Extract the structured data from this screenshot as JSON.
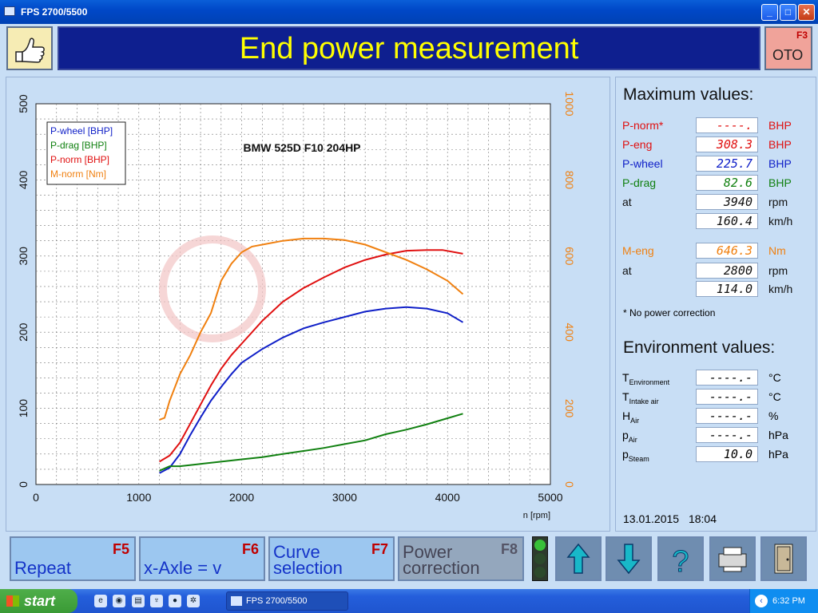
{
  "window": {
    "title": "FPS 2700/5500"
  },
  "header": {
    "title": "End power measurement",
    "f3_key": "F3",
    "f3_icon": "ОТО"
  },
  "chart_data": {
    "type": "line",
    "title": "BMW 525D F10 204HP",
    "xlabel": "n [rpm]",
    "xlim": [
      0,
      5000
    ],
    "ylim_left": [
      0,
      500
    ],
    "ylim_right": [
      0,
      1000
    ],
    "x_ticks": [
      "0",
      "1000",
      "2000",
      "3000",
      "4000",
      "5000"
    ],
    "y_left_ticks": [
      "0",
      "100",
      "200",
      "300",
      "400",
      "500"
    ],
    "y_right_ticks": [
      "0",
      "200",
      "400",
      "600",
      "800",
      "1000"
    ],
    "grid": true,
    "legend_position": "top-left",
    "series": [
      {
        "name": "P-wheel [BHP]",
        "axis": "left",
        "color": "#1020c8",
        "x": [
          1200,
          1300,
          1400,
          1500,
          1600,
          1700,
          1800,
          1900,
          2000,
          2200,
          2400,
          2600,
          2800,
          3000,
          3200,
          3400,
          3600,
          3800,
          4000,
          4150
        ],
        "y": [
          15,
          22,
          40,
          65,
          88,
          110,
          128,
          145,
          160,
          178,
          193,
          205,
          213,
          220,
          227,
          231,
          233,
          231,
          225,
          213
        ]
      },
      {
        "name": "P-drag [BHP]",
        "axis": "left",
        "color": "#108010",
        "x": [
          1200,
          1300,
          1400,
          1600,
          1800,
          2000,
          2200,
          2400,
          2600,
          2800,
          3000,
          3200,
          3400,
          3600,
          3800,
          4000,
          4150
        ],
        "y": [
          18,
          24,
          24,
          27,
          30,
          33,
          36,
          40,
          44,
          48,
          53,
          58,
          66,
          72,
          79,
          87,
          93
        ]
      },
      {
        "name": "P-norm [BHP]",
        "axis": "left",
        "color": "#e01010",
        "x": [
          1200,
          1300,
          1400,
          1500,
          1600,
          1700,
          1800,
          1900,
          2000,
          2200,
          2400,
          2600,
          2800,
          3000,
          3200,
          3400,
          3600,
          3800,
          3950,
          4150
        ],
        "y": [
          30,
          38,
          55,
          80,
          105,
          130,
          152,
          170,
          185,
          215,
          240,
          258,
          272,
          285,
          295,
          302,
          307,
          308,
          308,
          303
        ]
      },
      {
        "name": "M-norm [Nm]",
        "axis": "right",
        "color": "#f08010",
        "x": [
          1200,
          1250,
          1300,
          1400,
          1500,
          1600,
          1700,
          1800,
          1900,
          2000,
          2100,
          2200,
          2400,
          2600,
          2800,
          3000,
          3200,
          3400,
          3600,
          3800,
          4000,
          4150
        ],
        "y": [
          170,
          175,
          220,
          290,
          340,
          400,
          450,
          535,
          580,
          610,
          625,
          630,
          640,
          646,
          646,
          642,
          630,
          610,
          590,
          565,
          535,
          500
        ]
      }
    ]
  },
  "maximum_values": {
    "heading": "Maximum values:",
    "rows": [
      {
        "label": "P-norm*",
        "value": "----.",
        "unit": "BHP",
        "color": "#e01010"
      },
      {
        "label": "P-eng",
        "value": "308.3",
        "unit": "BHP",
        "color": "#e01010"
      },
      {
        "label": "P-wheel",
        "value": "225.7",
        "unit": "BHP",
        "color": "#1020c8"
      },
      {
        "label": "P-drag",
        "value": "82.6",
        "unit": "BHP",
        "color": "#108010"
      },
      {
        "label": "at",
        "value": "3940",
        "unit": "rpm",
        "color": "#111111"
      },
      {
        "label": "",
        "value": "160.4",
        "unit": "km/h",
        "color": "#111111"
      },
      {
        "label": "M-eng",
        "value": "646.3",
        "unit": "Nm",
        "color": "#f08010"
      },
      {
        "label": "at",
        "value": "2800",
        "unit": "rpm",
        "color": "#111111"
      },
      {
        "label": "",
        "value": "114.0",
        "unit": "km/h",
        "color": "#111111"
      }
    ],
    "note": "* No power correction"
  },
  "environment_values": {
    "heading": "Environment values:",
    "rows": [
      {
        "label": "T",
        "sub": "Environment",
        "value": "----.-",
        "unit": "°C"
      },
      {
        "label": "T",
        "sub": "Intake air",
        "value": "----.-",
        "unit": "°C"
      },
      {
        "label": "H",
        "sub": "Air",
        "value": "----.-",
        "unit": "%"
      },
      {
        "label": "p",
        "sub": "Air",
        "value": "----.-",
        "unit": "hPa"
      },
      {
        "label": "p",
        "sub": "Steam",
        "value": "10.0",
        "unit": "hPa"
      }
    ]
  },
  "datetime": {
    "date": "13.01.2015",
    "time": "18:04"
  },
  "toolbar": {
    "repeat": {
      "key": "F5",
      "label": "Repeat"
    },
    "x_axle": {
      "key": "F6",
      "label": "x-Axle = v"
    },
    "curve_selection": {
      "key": "F7",
      "label": "Curve\nselection"
    },
    "power_correction": {
      "key": "F8",
      "label": "Power\ncorrection"
    }
  },
  "taskbar": {
    "start_label": "start",
    "task_label": "FPS 2700/5500",
    "clock": "6:32 PM"
  }
}
